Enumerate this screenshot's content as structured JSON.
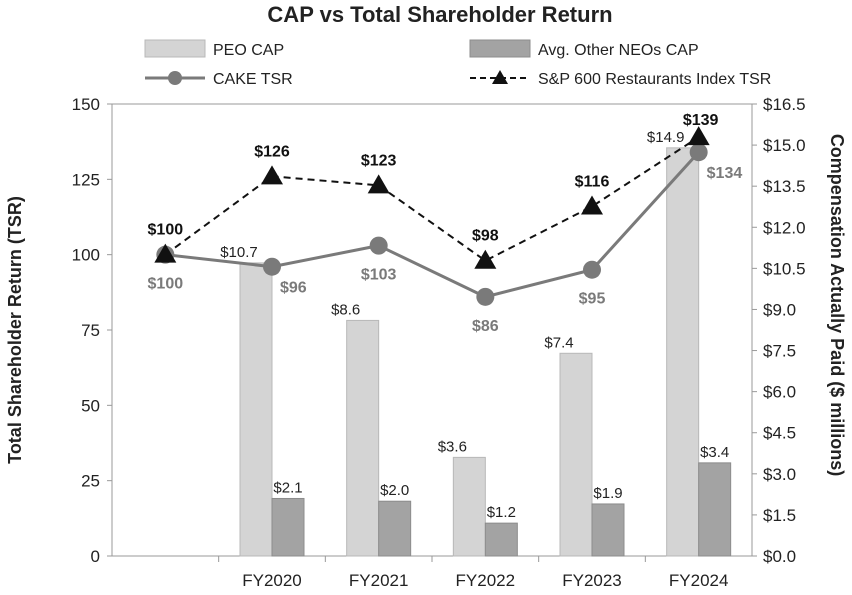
{
  "chart_data": {
    "type": "bar",
    "title": "CAP vs Total Shareholder Return",
    "categories": [
      "",
      "FY2020",
      "FY2021",
      "FY2022",
      "FY2023",
      "FY2024"
    ],
    "ylabel": "Total Shareholder Return (TSR)",
    "y2label": "Compensation Actually Paid ($ millions)",
    "ylim": [
      0,
      150
    ],
    "yticks": [
      "0",
      "25",
      "50",
      "75",
      "100",
      "125",
      "150"
    ],
    "y2lim": [
      0,
      16.5
    ],
    "y2ticks": [
      "$0.0",
      "$1.5",
      "$3.0",
      "$4.5",
      "$6.0",
      "$7.5",
      "$9.0",
      "$10.5",
      "$12.0",
      "$13.5",
      "$15.0",
      "$16.5"
    ],
    "series": [
      {
        "name": "PEO CAP",
        "kind": "bar",
        "axis": "right",
        "color": "#d4d4d4",
        "values": [
          null,
          10.7,
          8.6,
          3.6,
          7.4,
          14.9
        ],
        "labels": [
          "",
          "$10.7",
          "$8.6",
          "$3.6",
          "$7.4",
          "$14.9"
        ]
      },
      {
        "name": "Avg. Other NEOs CAP",
        "kind": "bar",
        "axis": "right",
        "color": "#a3a3a3",
        "values": [
          null,
          2.1,
          2.0,
          1.2,
          1.9,
          3.4
        ],
        "labels": [
          "",
          "$2.1",
          "$2.0",
          "$1.2",
          "$1.9",
          "$3.4"
        ]
      },
      {
        "name": "CAKE TSR",
        "kind": "line",
        "axis": "left",
        "color": "#7a7a7a",
        "values": [
          100,
          96,
          103,
          86,
          95,
          134
        ],
        "labels": [
          "$100",
          "$96",
          "$103",
          "$86",
          "$95",
          "$134"
        ]
      },
      {
        "name": "S&P 600 Restaurants Index TSR",
        "kind": "line",
        "axis": "left",
        "color": "#111111",
        "values": [
          100,
          126,
          123,
          98,
          116,
          139
        ],
        "labels": [
          "$100",
          "$126",
          "$123",
          "$98",
          "$116",
          "$139"
        ]
      }
    ],
    "legend": [
      "PEO CAP",
      "Avg. Other NEOs CAP",
      "CAKE TSR",
      "S&P 600 Restaurants Index TSR"
    ]
  }
}
